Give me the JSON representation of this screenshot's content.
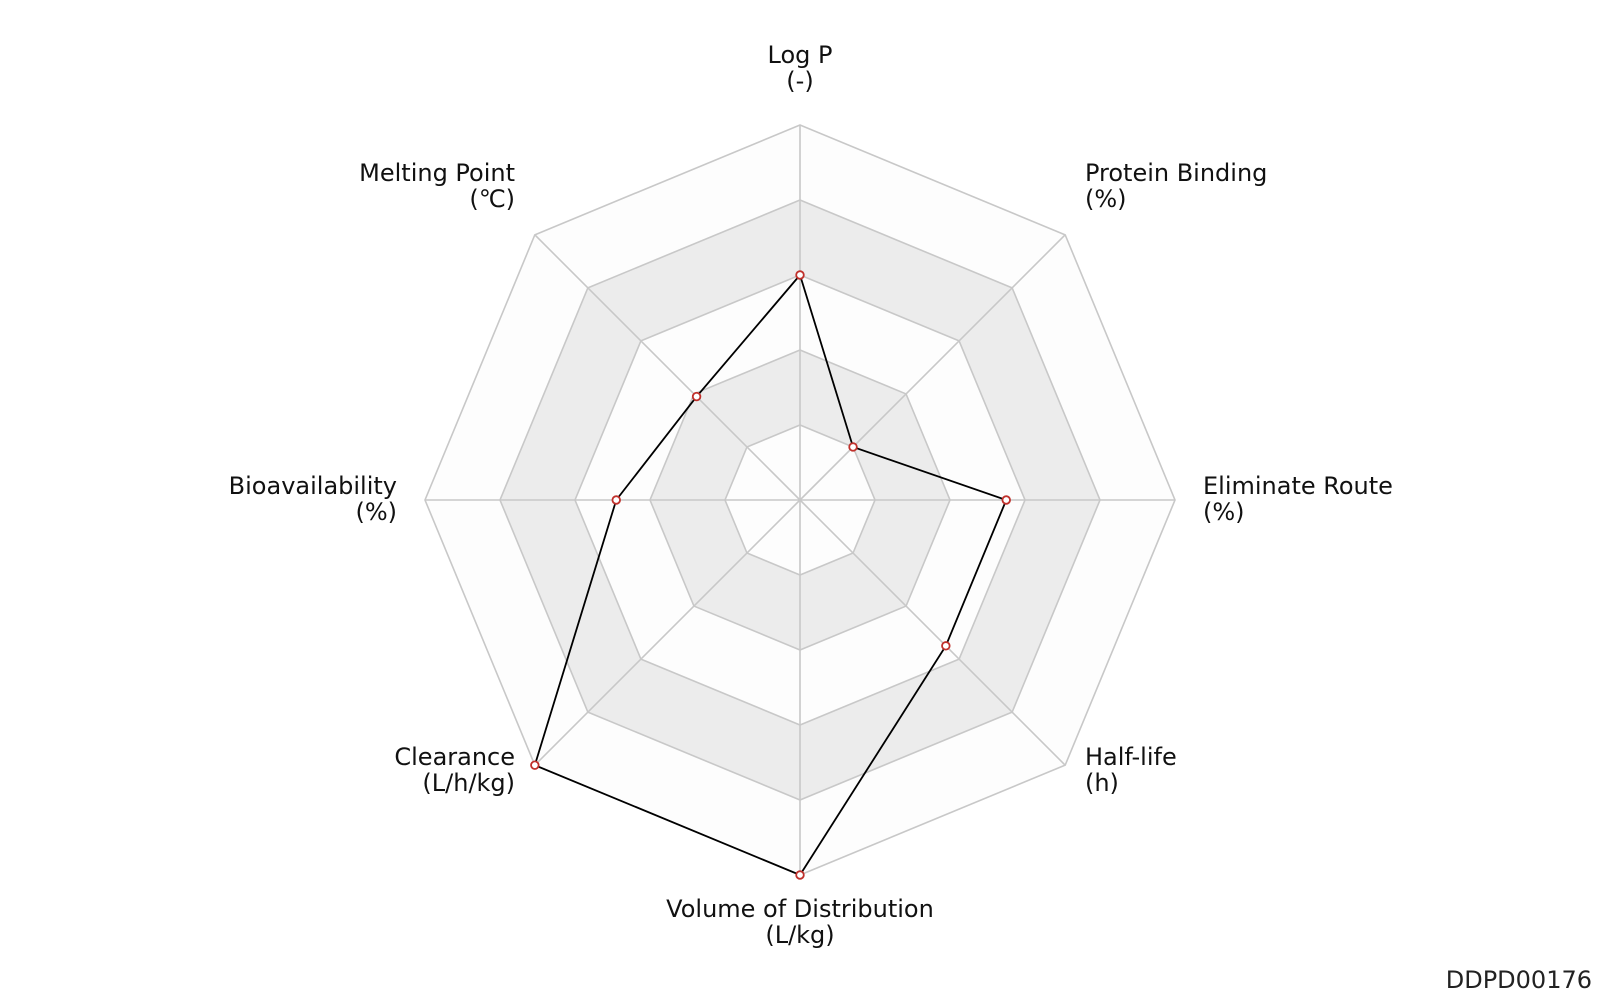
{
  "chart_data": {
    "type": "radar",
    "axes": [
      {
        "name": "Log P",
        "unit": "(-)",
        "value": 0.6
      },
      {
        "name": "Protein Binding",
        "unit": "(%)",
        "value": 0.2
      },
      {
        "name": "Eliminate Route",
        "unit": "(%)",
        "value": 0.55
      },
      {
        "name": "Half-life",
        "unit": "(h)",
        "value": 0.55
      },
      {
        "name": "Volume of Distribution",
        "unit": "(L/kg)",
        "value": 1.0
      },
      {
        "name": "Clearance",
        "unit": "(L/h/kg)",
        "value": 1.0
      },
      {
        "name": "Bioavailability",
        "unit": "(%)",
        "value": 0.49
      },
      {
        "name": "Melting Point",
        "unit": "(℃)",
        "value": 0.39
      }
    ],
    "rlim": [
      0,
      1
    ],
    "rings": 5,
    "grid": true,
    "legend": "none",
    "colors": {
      "line": "#000000",
      "marker_edge": "#c0302b",
      "marker_fill": "#ffffff",
      "band_fill": "#ececec",
      "band_fill_light": "#fdfdfd",
      "grid": "#c8c8c8"
    }
  },
  "footer": {
    "id": "DDPD00176"
  }
}
